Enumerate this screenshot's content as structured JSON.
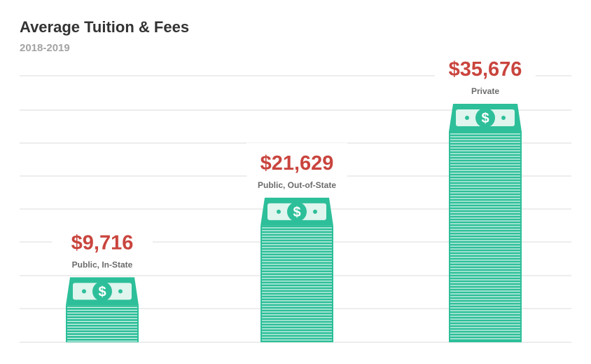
{
  "title": "Average Tuition & Fees",
  "subtitle": "2018-2019",
  "chart_data": {
    "type": "bar",
    "title": "Average Tuition & Fees",
    "subtitle": "2018-2019",
    "categories": [
      "Public, In-State",
      "Public, Out-of-State",
      "Private"
    ],
    "values": [
      9716,
      21629,
      35676
    ],
    "value_labels": [
      "$9,716",
      "$21,629",
      "$35,676"
    ],
    "grid": true,
    "legend": "none"
  },
  "colors": {
    "bar": "#2dbf99",
    "bar_stripe": "#dff5ee",
    "value_text": "#c9453e",
    "category_text": "#6b6b6b",
    "title_text": "#333333",
    "subtitle_text": "#a3a3a3",
    "grid": "#e2e2e2"
  },
  "icons": {
    "bar_top": "dollar-bill-icon"
  }
}
